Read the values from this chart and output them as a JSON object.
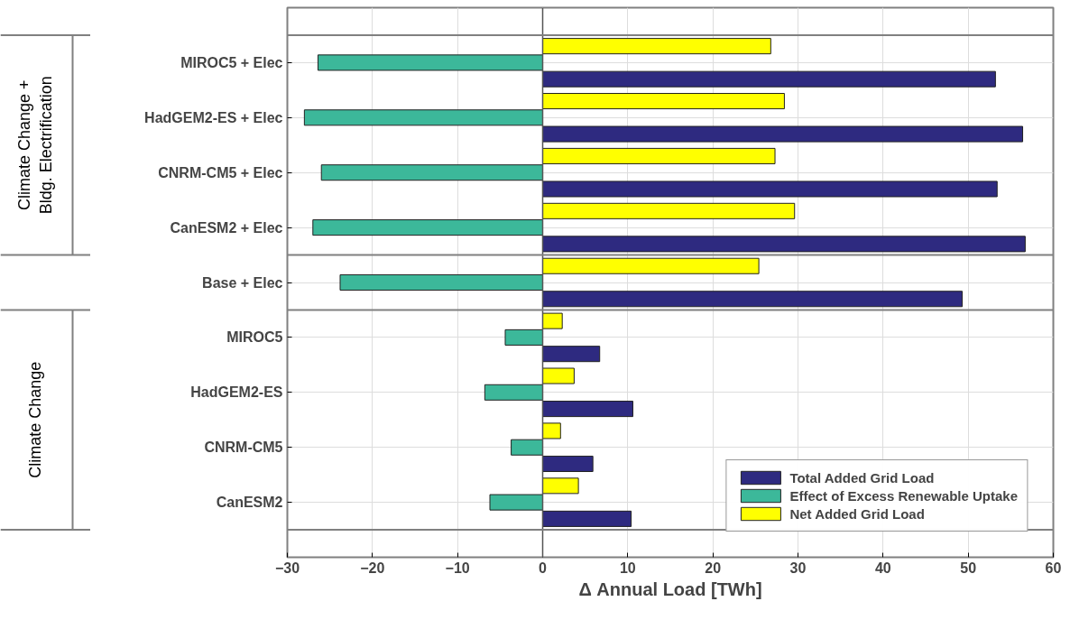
{
  "chart_data": {
    "type": "bar",
    "orientation": "horizontal",
    "xlabel": "Δ Annual Load [TWh]",
    "categories": [
      "MIROC5 + Elec",
      "HadGEM2-ES + Elec",
      "CNRM-CM5 + Elec",
      "CanESM2 + Elec",
      "Base + Elec",
      "MIROC5",
      "HadGEM2-ES",
      "CNRM-CM5",
      "CanESM2"
    ],
    "series": [
      {
        "name": "Total Added Grid Load",
        "color": "#2e2a80",
        "values": [
          53.2,
          56.4,
          53.4,
          56.7,
          49.3,
          6.7,
          10.6,
          5.9,
          10.4
        ]
      },
      {
        "name": "Effect of Excess Renewable Uptake",
        "color": "#3cb89a",
        "values": [
          -26.4,
          -28.0,
          -26.0,
          -27.0,
          -23.8,
          -4.4,
          -6.8,
          -3.7,
          -6.2
        ]
      },
      {
        "name": "Net Added Grid Load",
        "color": "#ffff00",
        "values": [
          26.8,
          28.4,
          27.3,
          29.6,
          25.4,
          2.3,
          3.7,
          2.1,
          4.2
        ]
      }
    ],
    "xlim": [
      -30,
      60
    ],
    "xticks": [
      -30,
      -20,
      -10,
      0,
      10,
      20,
      30,
      40,
      50,
      60
    ],
    "annotations": [
      "Climate Change +\nBldg. Electrification",
      "Climate Change"
    ],
    "grid": true,
    "legend": "bottom right"
  }
}
